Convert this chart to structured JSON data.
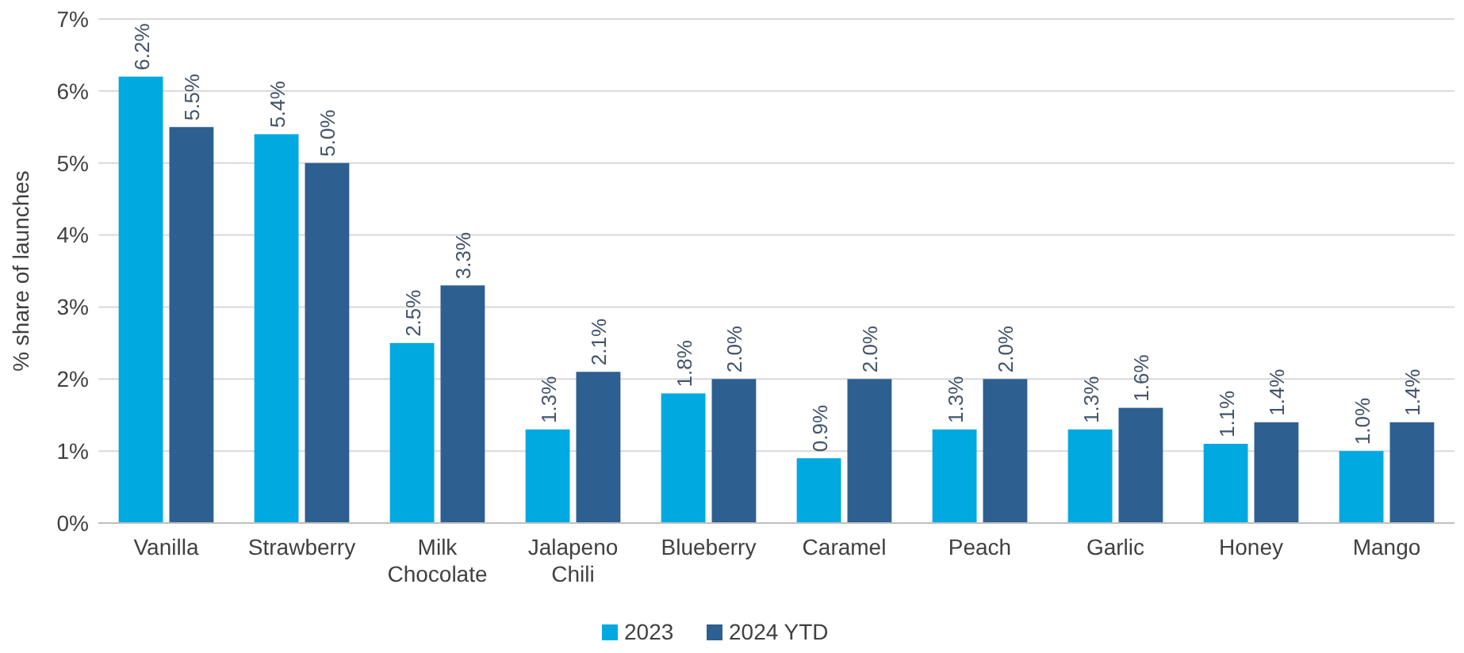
{
  "chart_data": {
    "type": "bar",
    "ylabel": "% share of launches",
    "categories": [
      "Vanilla",
      "Strawberry",
      "Milk Chocolate",
      "Jalapeno Chili",
      "Blueberry",
      "Caramel",
      "Peach",
      "Garlic",
      "Honey",
      "Mango"
    ],
    "series": [
      {
        "name": "2023",
        "color": "#00a9e0",
        "values": [
          6.2,
          5.4,
          2.5,
          1.3,
          1.8,
          0.9,
          1.3,
          1.3,
          1.1,
          1.0
        ],
        "value_labels": [
          "6.2%",
          "5.4%",
          "2.5%",
          "1.3%",
          "1.8%",
          "0.9%",
          "1.3%",
          "1.3%",
          "1.1%",
          "1.0%"
        ]
      },
      {
        "name": "2024 YTD",
        "color": "#2e5f91",
        "values": [
          5.5,
          5.0,
          3.3,
          2.1,
          2.0,
          2.0,
          2.0,
          1.6,
          1.4,
          1.4
        ],
        "value_labels": [
          "5.5%",
          "5.0%",
          "3.3%",
          "2.1%",
          "2.0%",
          "2.0%",
          "2.0%",
          "1.6%",
          "1.4%",
          "1.4%"
        ]
      }
    ],
    "ylim": [
      0,
      7
    ],
    "yticks": [
      {
        "value": 0,
        "label": "0%"
      },
      {
        "value": 1,
        "label": "1%"
      },
      {
        "value": 2,
        "label": "2%"
      },
      {
        "value": 3,
        "label": "3%"
      },
      {
        "value": 4,
        "label": "4%"
      },
      {
        "value": 5,
        "label": "5%"
      },
      {
        "value": 6,
        "label": "6%"
      },
      {
        "value": 7,
        "label": "7%"
      }
    ],
    "grid": "y",
    "legend": "bottom"
  }
}
